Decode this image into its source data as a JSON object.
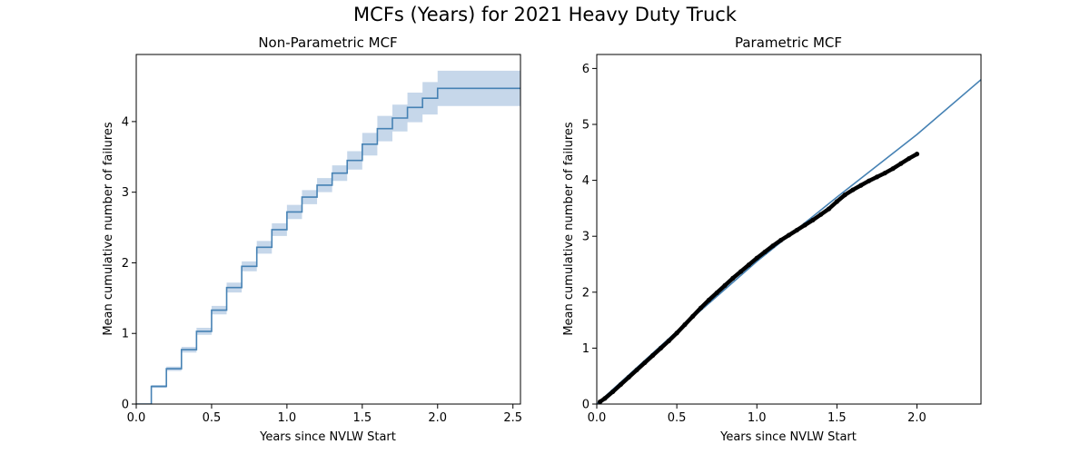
{
  "suptitle": "MCFs (Years) for 2021 Heavy Duty Truck",
  "colors": {
    "line": "#4682b4",
    "band": "#c6d7ea",
    "points": "#000000"
  },
  "chart_data": [
    {
      "type": "line",
      "title": "Non-Parametric MCF",
      "xlabel": "Years since NVLW Start",
      "ylabel": "Mean cumulative number of failures",
      "xlim": [
        0,
        2.55
      ],
      "ylim": [
        0,
        4.95
      ],
      "xticks": [
        "0.0",
        "0.5",
        "1.0",
        "1.5",
        "2.0",
        "2.5"
      ],
      "yticks": [
        "0",
        "1",
        "2",
        "3",
        "4"
      ],
      "grid": false,
      "series": [
        {
          "style": "step",
          "x": [
            0,
            0.1,
            0.2,
            0.3,
            0.4,
            0.5,
            0.6,
            0.7,
            0.8,
            0.9,
            1.0,
            1.1,
            1.2,
            1.3,
            1.4,
            1.5,
            1.6,
            1.7,
            1.8,
            1.9,
            2.0,
            2.55
          ],
          "y": [
            0,
            0.25,
            0.5,
            0.77,
            1.03,
            1.33,
            1.65,
            1.95,
            2.22,
            2.47,
            2.72,
            2.93,
            3.1,
            3.27,
            3.45,
            3.68,
            3.9,
            4.05,
            4.2,
            4.33,
            4.47,
            4.47
          ],
          "lower": [
            0,
            0.23,
            0.47,
            0.73,
            0.98,
            1.27,
            1.58,
            1.88,
            2.13,
            2.38,
            2.62,
            2.83,
            3.0,
            3.16,
            3.32,
            3.52,
            3.72,
            3.86,
            3.99,
            4.1,
            4.22,
            4.22
          ],
          "upper": [
            0,
            0.27,
            0.53,
            0.81,
            1.08,
            1.39,
            1.72,
            2.02,
            2.31,
            2.56,
            2.82,
            3.03,
            3.2,
            3.38,
            3.58,
            3.84,
            4.08,
            4.24,
            4.41,
            4.56,
            4.72,
            4.72
          ]
        }
      ]
    },
    {
      "type": "scatter",
      "title": "Parametric MCF",
      "xlabel": "Years since NVLW Start",
      "ylabel": "Mean cumulative number of failures",
      "xlim": [
        0,
        2.4
      ],
      "ylim": [
        0,
        6.25
      ],
      "xticks": [
        "0.0",
        "0.5",
        "1.0",
        "1.5",
        "2.0"
      ],
      "yticks": [
        "0",
        "1",
        "2",
        "3",
        "4",
        "5",
        "6"
      ],
      "grid": false,
      "series": [
        {
          "style": "line",
          "x": [
            0,
            0.5,
            1.0,
            1.5,
            2.0,
            2.4
          ],
          "y": [
            0,
            1.3,
            2.55,
            3.7,
            4.82,
            5.8
          ]
        },
        {
          "style": "points",
          "x": [
            0.02,
            0.05,
            0.1,
            0.15,
            0.2,
            0.25,
            0.3,
            0.35,
            0.4,
            0.45,
            0.5,
            0.55,
            0.6,
            0.65,
            0.7,
            0.75,
            0.8,
            0.85,
            0.9,
            0.95,
            1.0,
            1.05,
            1.1,
            1.15,
            1.2,
            1.25,
            1.3,
            1.35,
            1.4,
            1.45,
            1.5,
            1.55,
            1.6,
            1.65,
            1.7,
            1.75,
            1.8,
            1.85,
            1.9,
            1.95,
            2.0
          ],
          "y": [
            0.04,
            0.1,
            0.22,
            0.35,
            0.48,
            0.61,
            0.74,
            0.87,
            1.0,
            1.13,
            1.27,
            1.42,
            1.57,
            1.72,
            1.86,
            1.99,
            2.12,
            2.25,
            2.37,
            2.49,
            2.61,
            2.72,
            2.83,
            2.93,
            3.02,
            3.11,
            3.2,
            3.29,
            3.39,
            3.49,
            3.62,
            3.74,
            3.83,
            3.91,
            3.99,
            4.06,
            4.13,
            4.21,
            4.3,
            4.39,
            4.47
          ]
        }
      ]
    }
  ]
}
